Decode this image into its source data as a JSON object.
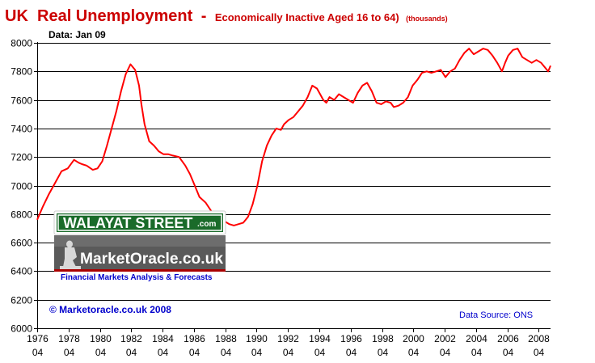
{
  "chart_data": {
    "type": "line",
    "title": "UK  Real Unemployment",
    "title_separator": "-",
    "subtitle": "Economically Inactive Aged 16 to 64)",
    "unit_label": "(thousands)",
    "annotation": "Data: Jan 09",
    "copyright": "© Marketoracle.co.uk 2008",
    "source_note": "Data Source: ONS",
    "line_color": "#ff0000",
    "grid": true,
    "ylim": [
      6000,
      8000
    ],
    "yticks": [
      "6000",
      "6200",
      "6400",
      "6600",
      "6800",
      "7000",
      "7200",
      "7400",
      "7600",
      "7800",
      "8000"
    ],
    "xlim": [
      1976.25,
      2009.0
    ],
    "xticks": [
      {
        "year": "1976",
        "month": "04"
      },
      {
        "year": "1978",
        "month": "04"
      },
      {
        "year": "1980",
        "month": "04"
      },
      {
        "year": "1982",
        "month": "04"
      },
      {
        "year": "1984",
        "month": "04"
      },
      {
        "year": "1986",
        "month": "04"
      },
      {
        "year": "1988",
        "month": "04"
      },
      {
        "year": "1990",
        "month": "04"
      },
      {
        "year": "1992",
        "month": "04"
      },
      {
        "year": "1994",
        "month": "04"
      },
      {
        "year": "1996",
        "month": "04"
      },
      {
        "year": "1998",
        "month": "04"
      },
      {
        "year": "2000",
        "month": "04"
      },
      {
        "year": "2002",
        "month": "04"
      },
      {
        "year": "2004",
        "month": "04"
      },
      {
        "year": "2006",
        "month": "04"
      },
      {
        "year": "2008",
        "month": "04"
      }
    ],
    "series": [
      {
        "x": [
          1976.25,
          1976.6,
          1977.0,
          1977.4,
          1977.8,
          1978.2,
          1978.6,
          1978.9,
          1979.1,
          1979.4,
          1979.8,
          1980.1,
          1980.4,
          1980.7,
          1981.0,
          1981.3,
          1981.6,
          1981.9,
          1982.2,
          1982.5,
          1982.75,
          1982.9,
          1983.1,
          1983.4,
          1983.7,
          1984.0,
          1984.3,
          1984.6,
          1984.9,
          1985.3,
          1985.7,
          1986.0,
          1986.3,
          1986.6,
          1987.0,
          1987.3,
          1987.6,
          1987.9,
          1988.2,
          1988.5,
          1988.8,
          1989.1,
          1989.4,
          1989.7,
          1990.0,
          1990.3,
          1990.6,
          1990.9,
          1991.2,
          1991.5,
          1991.8,
          1992.0,
          1992.3,
          1992.6,
          1992.9,
          1993.2,
          1993.5,
          1993.8,
          1994.1,
          1994.3,
          1994.5,
          1994.7,
          1994.9,
          1995.2,
          1995.5,
          1995.8,
          1996.1,
          1996.4,
          1996.7,
          1997.0,
          1997.3,
          1997.6,
          1997.9,
          1998.2,
          1998.5,
          1998.8,
          1999.0,
          1999.3,
          1999.6,
          1999.9,
          2000.2,
          2000.5,
          2000.8,
          2001.1,
          2001.4,
          2001.7,
          2002.0,
          2002.3,
          2002.6,
          2002.9,
          2003.2,
          2003.5,
          2003.8,
          2004.1,
          2004.4,
          2004.7,
          2005.0,
          2005.3,
          2005.6,
          2005.9,
          2006.1,
          2006.3,
          2006.6,
          2006.9,
          2007.2,
          2007.5,
          2007.8,
          2008.1,
          2008.4,
          2008.7,
          2008.85,
          2009.0
        ],
        "y": [
          6760,
          6850,
          6940,
          7020,
          7100,
          7120,
          7180,
          7160,
          7150,
          7140,
          7110,
          7120,
          7170,
          7280,
          7400,
          7520,
          7660,
          7780,
          7850,
          7810,
          7700,
          7570,
          7430,
          7310,
          7280,
          7240,
          7220,
          7220,
          7210,
          7200,
          7140,
          7080,
          7000,
          6920,
          6880,
          6830,
          6780,
          6760,
          6750,
          6730,
          6720,
          6730,
          6740,
          6780,
          6870,
          7000,
          7170,
          7280,
          7350,
          7400,
          7390,
          7430,
          7460,
          7480,
          7520,
          7560,
          7620,
          7700,
          7680,
          7640,
          7600,
          7580,
          7620,
          7600,
          7640,
          7620,
          7600,
          7580,
          7650,
          7700,
          7720,
          7660,
          7580,
          7570,
          7590,
          7580,
          7550,
          7560,
          7580,
          7620,
          7700,
          7740,
          7790,
          7800,
          7790,
          7800,
          7810,
          7760,
          7800,
          7820,
          7880,
          7930,
          7960,
          7920,
          7940,
          7960,
          7950,
          7910,
          7860,
          7800,
          7860,
          7910,
          7950,
          7960,
          7900,
          7880,
          7860,
          7880,
          7860,
          7820,
          7800,
          7840
        ]
      }
    ]
  },
  "branding": {
    "street_sign_text": "WALAYAT STREET",
    "street_sign_suffix": ".com",
    "site_name": "MarketOracle.co.uk",
    "tagline": "Financial Markets Analysis & Forecasts"
  },
  "colors": {
    "title_red": "#cc0000",
    "series_red": "#ff0000",
    "sign_green": "#1a6b2a",
    "site_blue": "#0000cc"
  }
}
